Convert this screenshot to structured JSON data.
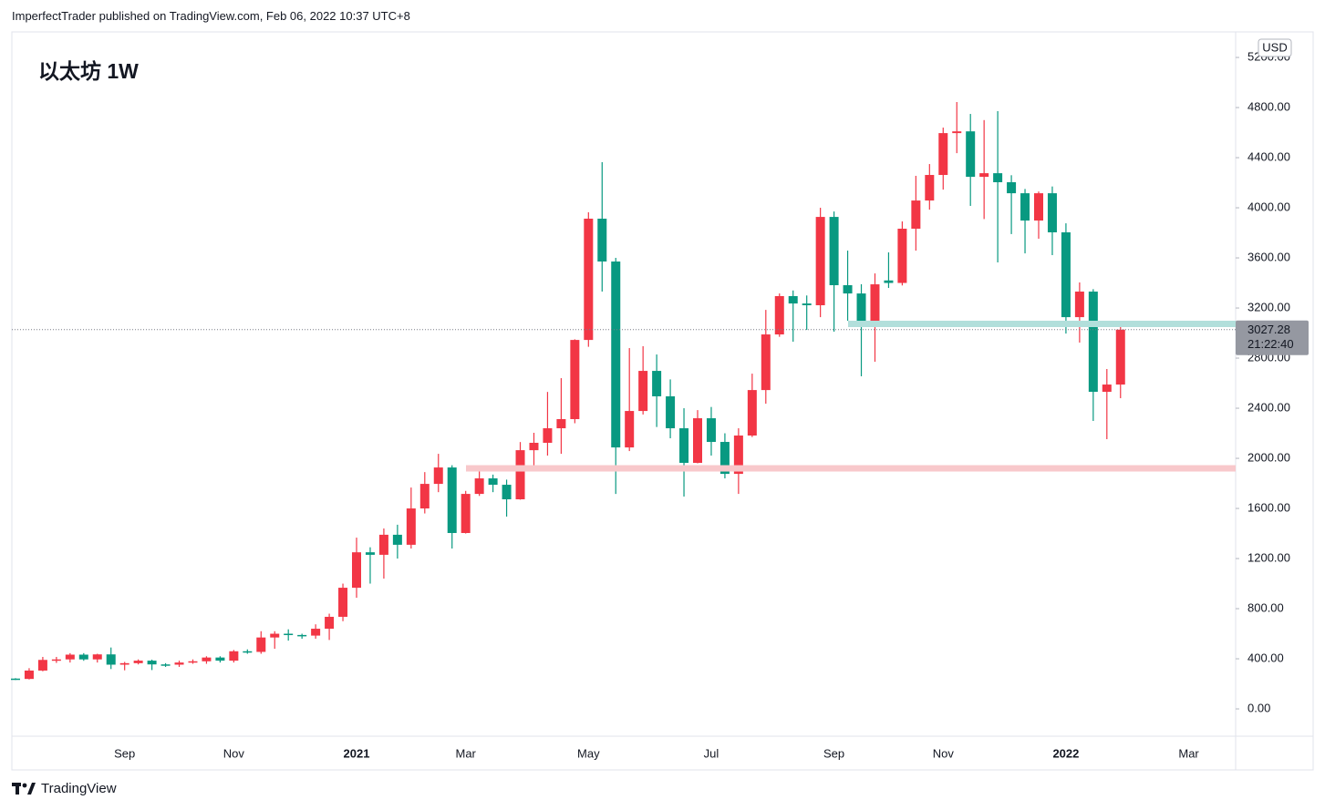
{
  "header": {
    "byline": "ImperfectTrader published on TradingView.com, Feb 06, 2022 10:37 UTC+8"
  },
  "footer": {
    "brand": "TradingView"
  },
  "chart_data": {
    "type": "candlestick",
    "title": "以太坊 1W",
    "currency": "USD",
    "countdown": "21:22:40",
    "up_color": "#f23645",
    "down_color": "#089981",
    "categories": [
      null,
      null,
      null,
      null,
      null,
      null,
      null,
      null,
      "Sep",
      null,
      null,
      null,
      null,
      null,
      null,
      null,
      "Nov",
      null,
      null,
      null,
      null,
      null,
      null,
      null,
      null,
      "2021",
      null,
      null,
      null,
      null,
      null,
      null,
      null,
      "Mar",
      null,
      null,
      null,
      null,
      null,
      null,
      null,
      null,
      "May",
      null,
      null,
      null,
      null,
      null,
      null,
      null,
      null,
      "Jul",
      null,
      null,
      null,
      null,
      null,
      null,
      null,
      null,
      "Sep",
      null,
      null,
      null,
      null,
      null,
      null,
      null,
      "Nov",
      null,
      null,
      null,
      null,
      null,
      null,
      null,
      null,
      "2022",
      null,
      null,
      null,
      null,
      null,
      null,
      null,
      null,
      "Mar",
      null,
      null,
      null
    ],
    "open": [
      242,
      239,
      306,
      391,
      395,
      433,
      395,
      435,
      353,
      365,
      385,
      355,
      353,
      370,
      380,
      410,
      385,
      460,
      455,
      570,
      600,
      590,
      585,
      640,
      735,
      967,
      1250,
      1230,
      1390,
      1310,
      1600,
      1796,
      1927,
      1404,
      1716,
      1840,
      1789,
      1673,
      2065,
      2124,
      2240,
      2313,
      2945,
      3913,
      3571,
      2087,
      2378,
      2698,
      2495,
      2240,
      1964,
      2320,
      2131,
      1876,
      2182,
      2545,
      2989,
      3295,
      3236,
      3222,
      3927,
      3382,
      3316,
      3054,
      3420,
      3400,
      3833,
      4058,
      4262,
      4596,
      4610,
      4247,
      4276,
      4204,
      4116,
      3898,
      4116,
      3804,
      3127,
      3331,
      2531,
      2589,
      null,
      null,
      null,
      null,
      null,
      null,
      null,
      null
    ],
    "high": [
      245,
      325,
      415,
      415,
      445,
      445,
      440,
      490,
      375,
      395,
      393,
      365,
      385,
      395,
      420,
      420,
      470,
      475,
      620,
      620,
      635,
      600,
      675,
      760,
      1000,
      1367,
      1290,
      1440,
      1470,
      1767,
      1890,
      2036,
      1945,
      1740,
      1934,
      1870,
      1830,
      2130,
      2204,
      2530,
      2640,
      2950,
      3964,
      4364,
      3600,
      2880,
      2895,
      2829,
      2630,
      2400,
      2385,
      2410,
      2200,
      2240,
      2676,
      3185,
      3316,
      3340,
      3300,
      4000,
      3970,
      3658,
      3390,
      3476,
      3644,
      3891,
      4255,
      4349,
      4640,
      4844,
      4749,
      4700,
      4771,
      4260,
      4150,
      4130,
      4170,
      3876,
      3404,
      3350,
      2713,
      3060,
      null,
      null,
      null,
      null,
      null,
      null,
      null,
      null
    ],
    "low": [
      231,
      235,
      300,
      367,
      370,
      384,
      370,
      318,
      308,
      355,
      310,
      335,
      335,
      360,
      360,
      370,
      370,
      440,
      440,
      480,
      545,
      560,
      560,
      550,
      700,
      887,
      1000,
      1040,
      1200,
      1280,
      1560,
      1730,
      1280,
      1400,
      1700,
      1730,
      1535,
      1670,
      1913,
      2022,
      2036,
      2280,
      2890,
      3331,
      1716,
      2058,
      2350,
      2250,
      2160,
      1695,
      1960,
      2022,
      1840,
      1716,
      2170,
      2436,
      2970,
      2931,
      3025,
      3127,
      3011,
      3098,
      2655,
      2771,
      3360,
      3380,
      3658,
      3985,
      4145,
      4436,
      4015,
      3910,
      3564,
      3790,
      3636,
      3753,
      3622,
      2996,
      2924,
      2298,
      2153,
      2480,
      null,
      null,
      null,
      null,
      null,
      null,
      null,
      null
    ],
    "close": [
      239,
      306,
      391,
      395,
      433,
      395,
      435,
      353,
      365,
      385,
      355,
      353,
      370,
      380,
      410,
      385,
      460,
      455,
      570,
      600,
      590,
      585,
      640,
      735,
      967,
      1250,
      1230,
      1390,
      1310,
      1600,
      1796,
      1927,
      1404,
      1716,
      1840,
      1789,
      1673,
      2065,
      2124,
      2240,
      2313,
      2945,
      3913,
      3571,
      2087,
      2378,
      2698,
      2495,
      2240,
      1964,
      2320,
      2131,
      1876,
      2182,
      2545,
      2989,
      3295,
      3236,
      3222,
      3927,
      3382,
      3316,
      3054,
      3389,
      3400,
      3833,
      4058,
      4262,
      4596,
      4610,
      4247,
      4276,
      4204,
      4116,
      3898,
      4116,
      3804,
      3127,
      3331,
      2531,
      2589,
      3027.28,
      null,
      null,
      null,
      null,
      null,
      null,
      null,
      null
    ],
    "levels": [
      {
        "value": 3073,
        "color": "#b2dfdb"
      },
      {
        "value": 1920,
        "color": "#f8c8cb"
      }
    ],
    "ylim": [
      -218,
      5404
    ],
    "yticks": [
      {
        "value": 0,
        "label": "0.00"
      },
      {
        "value": 400,
        "label": "400.00"
      },
      {
        "value": 800,
        "label": "800.00"
      },
      {
        "value": 1200,
        "label": "1200.00"
      },
      {
        "value": 1600,
        "label": "1600.00"
      },
      {
        "value": 2000,
        "label": "2000.00"
      },
      {
        "value": 2400,
        "label": "2400.00"
      },
      {
        "value": 2800,
        "label": "2800.00"
      },
      {
        "value": 3200,
        "label": "3200.00"
      },
      {
        "value": 3600,
        "label": "3600.00"
      },
      {
        "value": 4000,
        "label": "4000.00"
      },
      {
        "value": 4400,
        "label": "4400.00"
      },
      {
        "value": 4800,
        "label": "4800.00"
      },
      {
        "value": 5200,
        "label": "5200.00"
      }
    ],
    "grid": false
  }
}
